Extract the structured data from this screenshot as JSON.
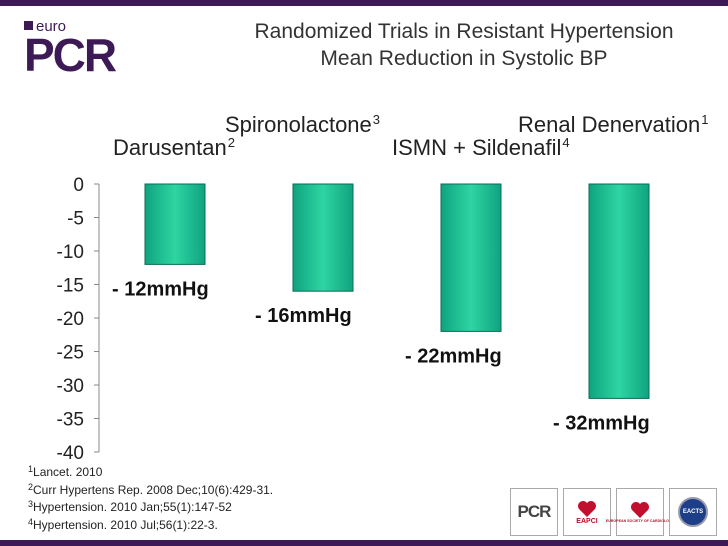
{
  "logo": {
    "small": "euro",
    "big": "PCR"
  },
  "header": {
    "title_line1": "Randomized Trials in Resistant Hypertension",
    "title_line2": "Mean Reduction in Systolic BP"
  },
  "colors": {
    "bar": "#0fa37f",
    "bar_light": "#2ed5a2",
    "brand": "#3d1a56"
  },
  "chart_data": {
    "type": "bar",
    "title": "Randomized Trials in Resistant Hypertension - Mean Reduction in Systolic BP",
    "categories": [
      "Darusentan",
      "Spironolactone",
      "ISMN + Sildenafil",
      "Renal Denervation"
    ],
    "category_refs": [
      "2",
      "3",
      "4",
      "1"
    ],
    "values": [
      -12,
      -16,
      -22,
      -32
    ],
    "data_labels": [
      "- 12mmHg",
      "- 16mmHg",
      "- 22mmHg",
      "- 32mmHg"
    ],
    "ylim": [
      -40,
      0
    ],
    "yticks": [
      0,
      -5,
      -10,
      -15,
      -20,
      -25,
      -30,
      -35,
      -40
    ],
    "xlabel": "",
    "ylabel": "",
    "grid": false,
    "legend": "none"
  },
  "references": [
    {
      "num": "1",
      "text": "Lancet. 2010"
    },
    {
      "num": "2",
      "text": "Curr Hypertens Rep. 2008 Dec;10(6):429-31."
    },
    {
      "num": "3",
      "text": "Hypertension. 2010 Jan;55(1):147-52"
    },
    {
      "num": "4",
      "text": "Hypertension. 2010 Jul;56(1):22-3."
    }
  ],
  "badges": {
    "pcr": "PCR",
    "eapci": "EAPCI",
    "esc": "EUROPEAN SOCIETY OF CARDIOLOGY",
    "eacts": "EACTS"
  }
}
